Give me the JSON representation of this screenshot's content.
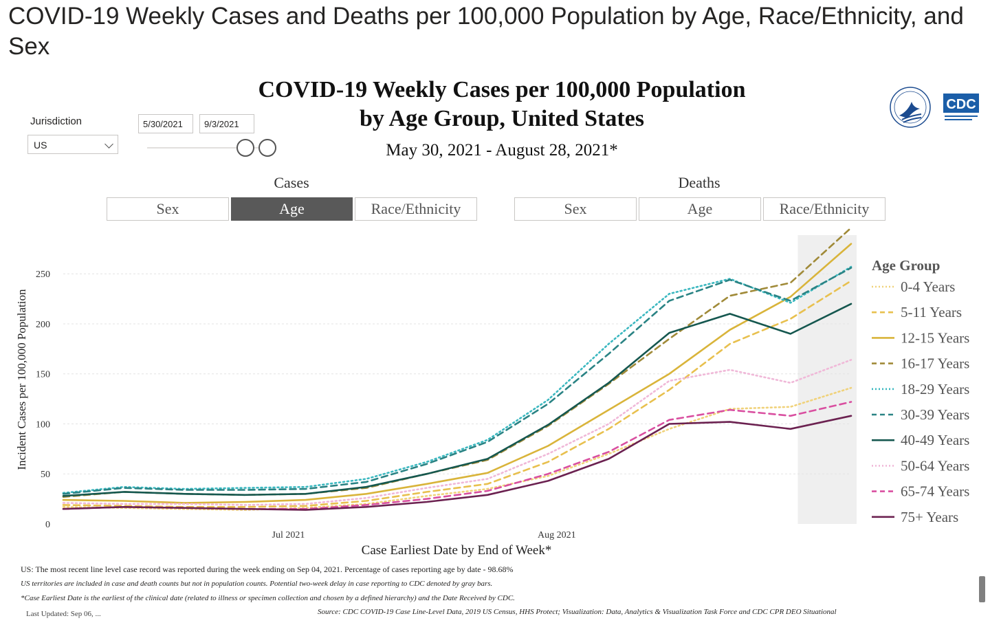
{
  "page_title": "COVID-19 Weekly Cases and Deaths per 100,000 Population by Age, Race/Ethnicity, and Sex",
  "chart_title_line1": "COVID-19 Weekly Cases per 100,000 Population",
  "chart_title_line2": "by Age Group, United States",
  "chart_subtitle": "May 30, 2021 - August 28, 2021*",
  "filters": {
    "jurisdiction_label": "Jurisdiction",
    "jurisdiction_value": "US",
    "start_date": "5/30/2021",
    "end_date": "9/3/2021"
  },
  "groups": {
    "cases_label": "Cases",
    "deaths_label": "Deaths",
    "cases_tabs": [
      "Sex",
      "Age",
      "Race/Ethnicity"
    ],
    "deaths_tabs": [
      "Sex",
      "Age",
      "Race/Ethnicity"
    ],
    "active": "cases-age"
  },
  "logos": {
    "cdc": "CDC"
  },
  "notes": {
    "line1": "US: The most recent line level case record was reported during the week ending on Sep 04, 2021. Percentage of cases reporting age by date - 98.68%",
    "line2": "US territories are included in case and death counts but not in population counts. Potential two-week delay in case reporting to CDC denoted by gray bars.",
    "line3": "*Case Earliest Date is the earliest of the clinical date (related to illness or specimen collection and chosen by a defined hierarchy) and the Date Received by CDC.",
    "last_updated": "Last Updated: Sep 06, ...",
    "source": "Source: CDC COVID-19 Case Line-Level Data, 2019 US Census, HHS Protect; Visualization: Data, Analytics & Visualization Task Force and CDC CPR DEO Situational"
  },
  "chart_data": {
    "type": "line",
    "xlabel": "Case Earliest Date by End of Week*",
    "ylabel": "Incident Cases per 100,000 Population",
    "ylim": [
      0,
      290
    ],
    "yticks": [
      0,
      50,
      100,
      150,
      200,
      250
    ],
    "x": [
      "2021-06-05",
      "2021-06-12",
      "2021-06-19",
      "2021-06-26",
      "2021-07-03",
      "2021-07-10",
      "2021-07-17",
      "2021-07-24",
      "2021-07-31",
      "2021-08-07",
      "2021-08-14",
      "2021-08-21",
      "2021-08-28",
      "2021-09-04"
    ],
    "xticks": [
      {
        "date": "2021-07-01",
        "label": "Jul 2021"
      },
      {
        "date": "2021-08-01",
        "label": "Aug 2021"
      }
    ],
    "shaded_region": [
      "2021-08-28",
      "2021-09-04"
    ],
    "legend_title": "Age Group",
    "legend_position": "right",
    "grid": "horizontal",
    "series": [
      {
        "name": "0-4 Years",
        "color": "#f0d27a",
        "style": "dotted",
        "values": [
          17,
          16,
          15,
          14,
          16,
          20,
          28,
          35,
          48,
          70,
          95,
          115,
          117,
          136
        ]
      },
      {
        "name": "5-11 Years",
        "color": "#e8c04e",
        "style": "dashed",
        "values": [
          19,
          18,
          17,
          17,
          18,
          23,
          32,
          40,
          62,
          95,
          134,
          180,
          205,
          243
        ]
      },
      {
        "name": "12-15 Years",
        "color": "#d9b43a",
        "style": "solid",
        "values": [
          24,
          23,
          21,
          22,
          24,
          30,
          40,
          51,
          78,
          114,
          150,
          194,
          227,
          280
        ]
      },
      {
        "name": "16-17 Years",
        "color": "#a08a38",
        "style": "dashed",
        "values": [
          27,
          32,
          30,
          29,
          30,
          36,
          50,
          64,
          98,
          140,
          185,
          228,
          241,
          296
        ]
      },
      {
        "name": "18-29 Years",
        "color": "#3bb8c0",
        "style": "dotted",
        "values": [
          31,
          37,
          35,
          36,
          37,
          45,
          62,
          84,
          124,
          180,
          230,
          245,
          221,
          257
        ]
      },
      {
        "name": "30-39 Years",
        "color": "#2a8384",
        "style": "dashed",
        "values": [
          30,
          36,
          34,
          34,
          35,
          42,
          60,
          82,
          120,
          170,
          223,
          244,
          223,
          256
        ]
      },
      {
        "name": "40-49 Years",
        "color": "#15574f",
        "style": "solid",
        "values": [
          28,
          32,
          30,
          29,
          30,
          37,
          50,
          65,
          99,
          141,
          191,
          210,
          190,
          220
        ]
      },
      {
        "name": "50-64 Years",
        "color": "#f0b8d8",
        "style": "dotted",
        "values": [
          21,
          20,
          20,
          19,
          20,
          26,
          36,
          45,
          70,
          100,
          143,
          154,
          141,
          164
        ]
      },
      {
        "name": "65-74 Years",
        "color": "#d94fa0",
        "style": "dashed",
        "values": [
          15,
          17,
          16,
          15,
          15,
          19,
          25,
          33,
          50,
          72,
          104,
          114,
          108,
          122
        ]
      },
      {
        "name": "75+ Years",
        "color": "#6b2150",
        "style": "solid",
        "values": [
          15,
          17,
          16,
          15,
          14,
          17,
          22,
          29,
          43,
          65,
          100,
          102,
          95,
          108
        ]
      }
    ]
  }
}
